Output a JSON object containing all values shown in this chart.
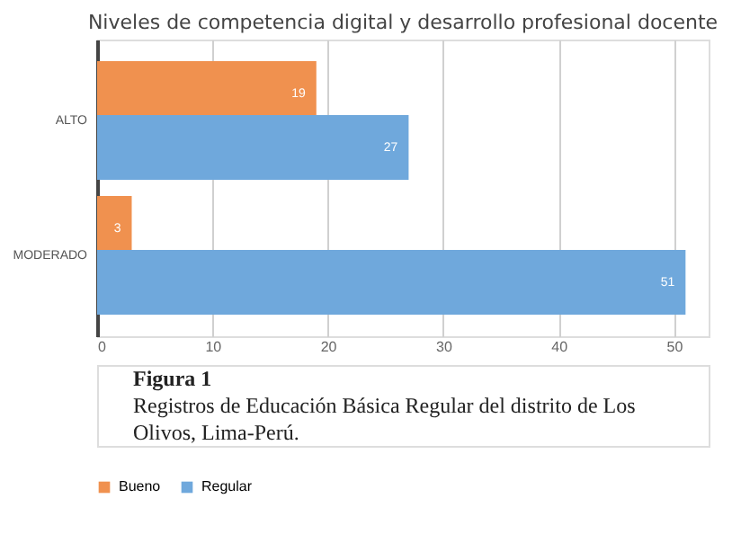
{
  "chart_data": {
    "type": "bar",
    "orientation": "horizontal",
    "title": "Niveles de competencia digital y desarrollo profesional docente",
    "categories": [
      "ALTO",
      "MODERADO"
    ],
    "series": [
      {
        "name": "Bueno",
        "color": "#f0914f",
        "values": [
          19,
          3
        ]
      },
      {
        "name": "Regular",
        "color": "#6fa8dc",
        "values": [
          27,
          51
        ]
      }
    ],
    "xlim": [
      0,
      53
    ],
    "xticks": [
      0,
      10,
      20,
      30,
      40,
      50
    ],
    "grid": "x",
    "legend": "bottom",
    "data_labels": true,
    "annotations": [
      "Figura 1",
      "Registros de Educación Básica Regular del distrito de Los",
      "Olivos, Lima-Perú."
    ]
  }
}
